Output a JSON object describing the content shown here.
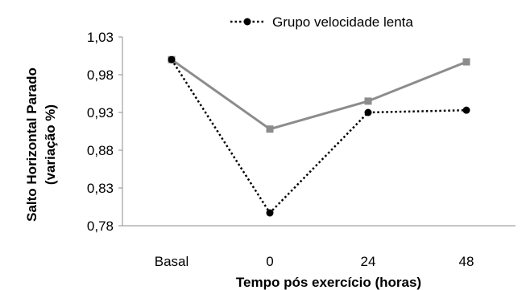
{
  "chart_data": {
    "type": "line",
    "categories": [
      "Basal",
      "0",
      "24",
      "48"
    ],
    "series": [
      {
        "name": "",
        "style": "solid-square",
        "color": "#8c8c8c",
        "values": [
          1.0,
          0.908,
          0.945,
          0.997
        ]
      },
      {
        "name": "Grupo velocidade lenta",
        "style": "dotted-circle",
        "color": "#000000",
        "values": [
          1.0,
          0.797,
          0.93,
          0.933
        ]
      }
    ],
    "xlabel": "Tempo pós exercício (horas)",
    "ylabel_line1": "Salto Horizontal Parado",
    "ylabel_line2": "(variação %)",
    "yticks": [
      "1,03",
      "0,98",
      "0,93",
      "0,88",
      "0,83",
      "0,78"
    ],
    "ylim": [
      0.78,
      1.03
    ],
    "grid": false,
    "legend": "top"
  }
}
